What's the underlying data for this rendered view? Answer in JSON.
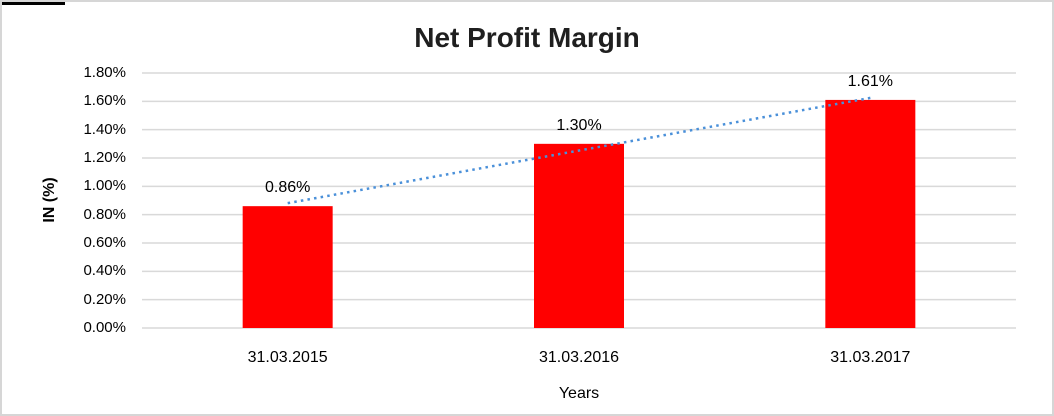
{
  "chart_data": {
    "type": "bar",
    "title": "Net Profit Margin",
    "xlabel": "Years",
    "ylabel": "IN (%)",
    "categories": [
      "31.03.2015",
      "31.03.2016",
      "31.03.2017"
    ],
    "values": [
      0.86,
      1.3,
      1.61
    ],
    "data_labels": [
      "0.86%",
      "1.30%",
      "1.61%"
    ],
    "ytick_labels": [
      "0.00%",
      "0.20%",
      "0.40%",
      "0.60%",
      "0.80%",
      "1.00%",
      "1.20%",
      "1.40%",
      "1.60%",
      "1.80%"
    ],
    "ylim": [
      0,
      1.8
    ],
    "ytick_step": 0.2,
    "grid": true,
    "legend": "none",
    "bar_color": "#ff0000",
    "gridline_color": "#d9d9d9",
    "trendline": {
      "type": "linear",
      "style": "dotted",
      "color": "#4a90d9",
      "from_value": 0.86,
      "to_value": 1.61
    }
  }
}
